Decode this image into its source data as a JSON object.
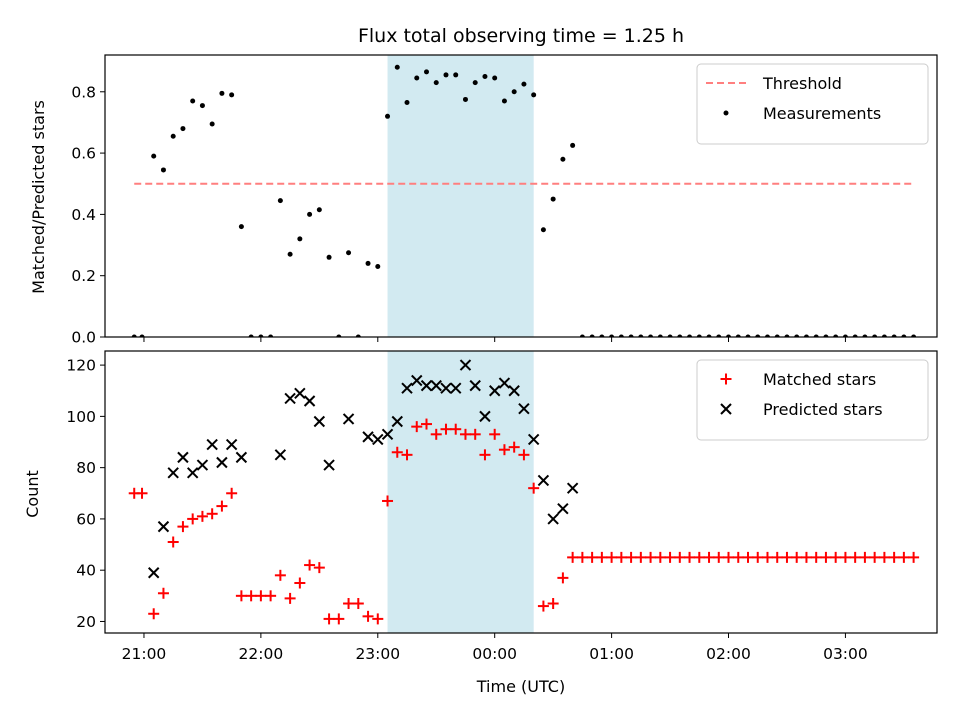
{
  "chart_data": {
    "type": "scatter",
    "title": "Flux total observing time = 1.25 h",
    "xlabel": "Time (UTC)",
    "x_ticks": [
      "21:00",
      "22:00",
      "23:00",
      "00:00",
      "01:00",
      "02:00",
      "03:00"
    ],
    "shaded_interval": {
      "start": "23:05",
      "end": "00:20",
      "color": "#add8e6"
    },
    "panels": [
      {
        "name": "ratio",
        "ylabel": "Matched/Predicted stars",
        "ylim": [
          0,
          0.92
        ],
        "y_ticks": [
          "0.0",
          "0.2",
          "0.4",
          "0.6",
          "0.8"
        ],
        "legend_position": "top-right",
        "threshold": {
          "name": "Threshold",
          "value": 0.5,
          "x_start": "20:55",
          "x_end": "03:35",
          "color": "#ff7f7f",
          "style": "dashed"
        },
        "series": [
          {
            "name": "Measurements",
            "marker": "dot",
            "color": "#000000",
            "x": [
              "20:55",
              "20:59",
              "21:05",
              "21:10",
              "21:15",
              "21:20",
              "21:25",
              "21:30",
              "21:35",
              "21:40",
              "21:45",
              "21:50",
              "21:55",
              "22:00",
              "22:05",
              "22:10",
              "22:15",
              "22:20",
              "22:25",
              "22:30",
              "22:35",
              "22:40",
              "22:45",
              "22:50",
              "22:55",
              "23:00",
              "23:05",
              "23:10",
              "23:15",
              "23:20",
              "23:25",
              "23:30",
              "23:35",
              "23:40",
              "23:45",
              "23:50",
              "23:55",
              "00:00",
              "00:05",
              "00:10",
              "00:15",
              "00:20",
              "00:25",
              "00:30",
              "00:35",
              "00:40",
              "00:45",
              "00:50",
              "00:55",
              "01:00",
              "01:05",
              "01:10",
              "01:15",
              "01:20",
              "01:25",
              "01:30",
              "01:35",
              "01:40",
              "01:45",
              "01:50",
              "01:55",
              "02:00",
              "02:05",
              "02:10",
              "02:15",
              "02:20",
              "02:25",
              "02:30",
              "02:35",
              "02:40",
              "02:45",
              "02:50",
              "02:55",
              "03:00",
              "03:05",
              "03:10",
              "03:15",
              "03:20",
              "03:25",
              "03:30",
              "03:35"
            ],
            "y": [
              0,
              0,
              0.59,
              0.545,
              0.655,
              0.68,
              0.77,
              0.755,
              0.695,
              0.795,
              0.79,
              0.36,
              0,
              0,
              0,
              0.445,
              0.27,
              0.32,
              0.4,
              0.415,
              0.26,
              0,
              0.275,
              0,
              0.24,
              0.23,
              0.72,
              0.88,
              0.765,
              0.845,
              0.865,
              0.83,
              0.855,
              0.855,
              0.775,
              0.83,
              0.85,
              0.845,
              0.77,
              0.8,
              0.825,
              0.79,
              0.35,
              0.45,
              0.58,
              0.625,
              0,
              0,
              0,
              0,
              0,
              0,
              0,
              0,
              0,
              0,
              0,
              0,
              0,
              0,
              0,
              0,
              0,
              0,
              0,
              0,
              0,
              0,
              0,
              0,
              0,
              0,
              0,
              0,
              0,
              0,
              0,
              0,
              0,
              0,
              0
            ]
          }
        ]
      },
      {
        "name": "counts",
        "ylabel": "Count",
        "ylim": [
          15.5,
          125.5
        ],
        "y_ticks": [
          "20",
          "40",
          "60",
          "80",
          "100",
          "120"
        ],
        "legend_position": "top-right",
        "series": [
          {
            "name": "Matched stars",
            "marker": "plus",
            "color": "#ff0000",
            "x": [
              "20:55",
              "20:59",
              "21:05",
              "21:10",
              "21:15",
              "21:20",
              "21:25",
              "21:30",
              "21:35",
              "21:40",
              "21:45",
              "21:50",
              "21:55",
              "22:00",
              "22:05",
              "22:10",
              "22:15",
              "22:20",
              "22:25",
              "22:30",
              "22:35",
              "22:40",
              "22:45",
              "22:50",
              "22:55",
              "23:00",
              "23:05",
              "23:10",
              "23:15",
              "23:20",
              "23:25",
              "23:30",
              "23:35",
              "23:40",
              "23:45",
              "23:50",
              "23:55",
              "00:00",
              "00:05",
              "00:10",
              "00:15",
              "00:20",
              "00:25",
              "00:30",
              "00:35",
              "00:40",
              "00:45",
              "00:50",
              "00:55",
              "01:00",
              "01:05",
              "01:10",
              "01:15",
              "01:20",
              "01:25",
              "01:30",
              "01:35",
              "01:40",
              "01:45",
              "01:50",
              "01:55",
              "02:00",
              "02:05",
              "02:10",
              "02:15",
              "02:20",
              "02:25",
              "02:30",
              "02:35",
              "02:40",
              "02:45",
              "02:50",
              "02:55",
              "03:00",
              "03:05",
              "03:10",
              "03:15",
              "03:20",
              "03:25",
              "03:30",
              "03:35"
            ],
            "y": [
              70,
              70,
              23,
              31,
              51,
              57,
              60,
              61,
              62,
              65,
              70,
              30,
              30,
              30,
              30,
              38,
              29,
              35,
              42,
              41,
              21,
              21,
              27,
              27,
              22,
              21,
              67,
              86,
              85,
              96,
              97,
              93,
              95,
              95,
              93,
              93,
              85,
              93,
              87,
              88,
              85,
              72,
              26,
              27,
              37,
              45,
              45,
              45,
              45,
              45,
              45,
              45,
              45,
              45,
              45,
              45,
              45,
              45,
              45,
              45,
              45,
              45,
              45,
              45,
              45,
              45,
              45,
              45,
              45,
              45,
              45,
              45,
              45,
              45,
              45,
              45,
              45,
              45,
              45,
              45,
              45
            ]
          },
          {
            "name": "Predicted stars",
            "marker": "x",
            "color": "#000000",
            "x": [
              "21:05",
              "21:10",
              "21:15",
              "21:20",
              "21:25",
              "21:30",
              "21:35",
              "21:40",
              "21:45",
              "21:50",
              "22:10",
              "22:15",
              "22:20",
              "22:25",
              "22:30",
              "22:35",
              "22:45",
              "22:55",
              "23:00",
              "23:05",
              "23:10",
              "23:15",
              "23:20",
              "23:25",
              "23:30",
              "23:35",
              "23:40",
              "23:45",
              "23:50",
              "23:55",
              "00:00",
              "00:05",
              "00:10",
              "00:15",
              "00:20",
              "00:25",
              "00:30",
              "00:35",
              "00:40"
            ],
            "y": [
              39,
              57,
              78,
              84,
              78,
              81,
              89,
              82,
              89,
              84,
              85,
              107,
              109,
              106,
              98,
              81,
              99,
              92,
              91,
              93,
              98,
              111,
              114,
              112,
              112,
              111,
              111,
              120,
              112,
              100,
              110,
              113,
              110,
              103,
              91,
              75,
              60,
              64,
              72
            ]
          }
        ]
      }
    ]
  }
}
